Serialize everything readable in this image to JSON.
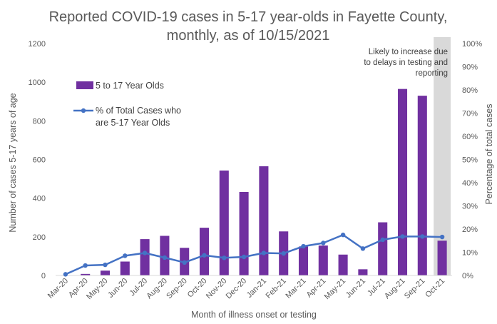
{
  "chart_data": {
    "type": "bar",
    "title": [
      "Reported COVID-19 cases in 5-17 year-olds in Fayette County,",
      "monthly, as of 10/15/2021"
    ],
    "xlabel": "Month of illness onset or testing",
    "ylabel": "Number of cases 5-17 years of age",
    "y2label": "Percentage of total cases",
    "ylim": [
      0,
      1200
    ],
    "y2lim": [
      0,
      100
    ],
    "yticks": [
      "0",
      "200",
      "400",
      "600",
      "800",
      "1000",
      "1200"
    ],
    "y2ticks": [
      "0%",
      "10%",
      "20%",
      "30%",
      "40%",
      "50%",
      "60%",
      "70%",
      "80%",
      "90%",
      "100%"
    ],
    "categories": [
      "Mar-20",
      "Apr-20",
      "May-20",
      "Jun-20",
      "Jul-20",
      "Aug-20",
      "Sep-20",
      "Oct-20",
      "Nov-20",
      "Dec-20",
      "Jan-21",
      "Feb-21",
      "Mar-21",
      "Apr-21",
      "May-21",
      "Jun-21",
      "Jul-21",
      "Aug-21",
      "Sep-21",
      "Oct-21"
    ],
    "series": [
      {
        "name": "5 to 17 Year Olds",
        "type": "bar",
        "axis": "left",
        "color": "#7030a0",
        "values": [
          2,
          8,
          25,
          72,
          188,
          205,
          143,
          247,
          543,
          432,
          565,
          228,
          150,
          155,
          108,
          32,
          275,
          965,
          930,
          180
        ]
      },
      {
        "name": "% of Total Cases who are 5-17 Year Olds",
        "type": "line",
        "axis": "right",
        "color": "#4472c4",
        "values": [
          0.5,
          4.3,
          4.6,
          8.5,
          9.7,
          7.7,
          5.6,
          8.7,
          7.6,
          8.0,
          9.7,
          9.5,
          12.6,
          14.0,
          17.5,
          11.6,
          15.4,
          16.8,
          16.8,
          16.6
        ]
      }
    ],
    "legend": {
      "position": "upper-left",
      "bar_label": "5 to 17 Year Olds",
      "line_label": [
        "% of Total Cases who",
        "are 5-17 Year Olds"
      ]
    },
    "annotation": {
      "lines": [
        "Likely to increase due",
        "to delays in testing and",
        "reporting"
      ],
      "shaded_category": "Oct-21",
      "shade_color": "#d9d9d9"
    },
    "grid": false
  }
}
